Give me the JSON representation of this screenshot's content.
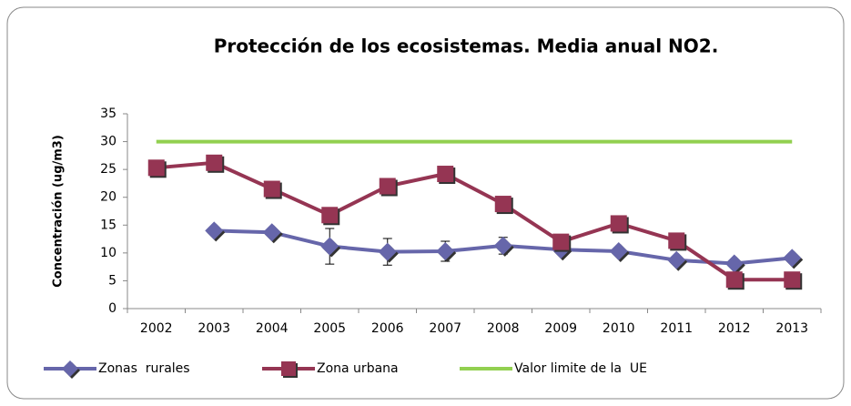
{
  "chart_data": {
    "type": "line",
    "title": "Protección de los ecosistemas. Media anual NO2.",
    "y_label": "Concentración (ug/m3)",
    "categories": [
      "2002",
      "2003",
      "2004",
      "2005",
      "2006",
      "2007",
      "2008",
      "2009",
      "2010",
      "2011",
      "2012",
      "2013"
    ],
    "series": [
      {
        "name": "Zonas  rurales",
        "color": "#6666aa",
        "marker": "diamond",
        "values": [
          null,
          14,
          13.7,
          11.2,
          10.2,
          10.3,
          11.3,
          10.6,
          10.3,
          8.7,
          8.1,
          9.1
        ],
        "errors": [
          null,
          null,
          null,
          3.2,
          2.4,
          1.8,
          1.5,
          null,
          null,
          null,
          null,
          null
        ]
      },
      {
        "name": "Zona urbana",
        "color": "#953553",
        "marker": "square",
        "values": [
          25.3,
          26.2,
          21.5,
          16.8,
          22,
          24.2,
          18.8,
          12,
          15.3,
          12.2,
          5.2,
          5.2
        ]
      },
      {
        "name": "Valor limite de la  UE",
        "color": "#92d050",
        "marker": "none",
        "values": [
          30,
          30,
          30,
          30,
          30,
          30,
          30,
          30,
          30,
          30,
          30,
          30
        ]
      }
    ],
    "ylim": [
      0,
      35
    ],
    "yticks": [
      0,
      5,
      10,
      15,
      20,
      25,
      30,
      35
    ],
    "grid": false,
    "legend": "bottom"
  }
}
